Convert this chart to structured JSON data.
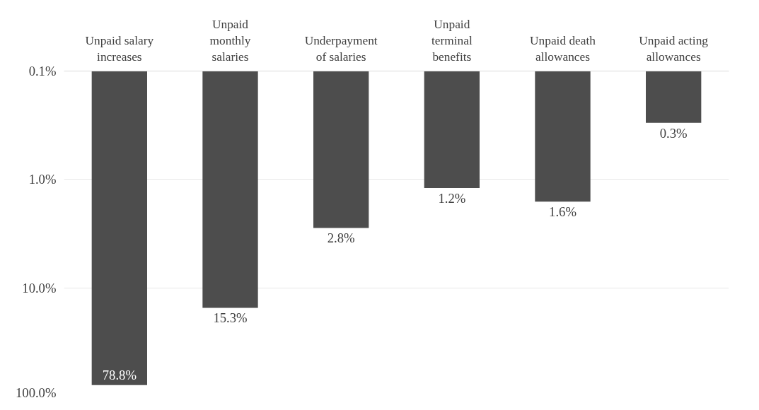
{
  "chart_data": {
    "type": "bar",
    "categories": [
      "Unpaid salary\nincreases",
      "Unpaid\nmonthly\nsalaries",
      "Underpayment\nof salaries",
      "Unpaid\nterminal\nbenefits",
      "Unpaid death\nallowances",
      "Unpaid acting\nallowances"
    ],
    "values": [
      78.8,
      15.3,
      2.8,
      1.2,
      1.6,
      0.3
    ],
    "value_labels": [
      "78.8%",
      "15.3%",
      "2.8%",
      "1.2%",
      "1.6%",
      "0.3%"
    ],
    "color": "#4d4d4d",
    "log": true,
    "ylim": [
      100,
      0.1
    ],
    "yticks": [
      {
        "value": 0.1,
        "label": "0.1%"
      },
      {
        "value": 1,
        "label": "1.0%"
      },
      {
        "value": 10,
        "label": "10.0%"
      },
      {
        "value": 100,
        "label": "100.0%"
      }
    ],
    "grid": "y"
  }
}
